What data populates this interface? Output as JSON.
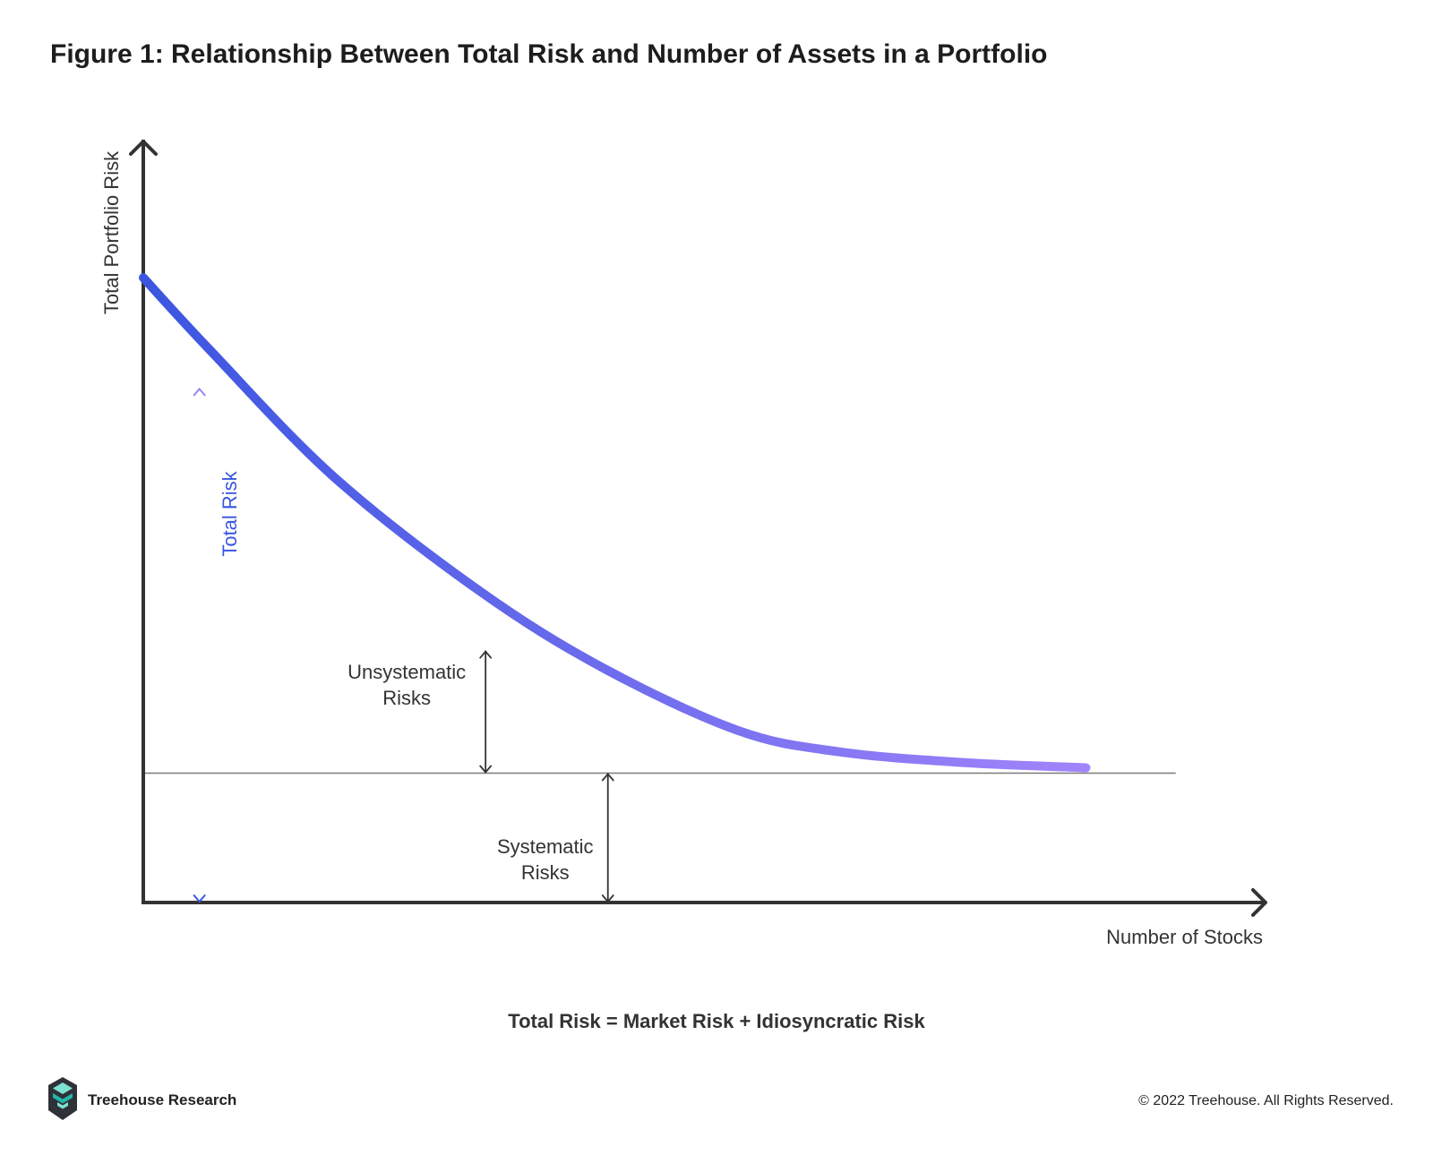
{
  "title": "Figure 1: Relationship Between Total Risk and Number of Assets in a Portfolio",
  "formula": "Total Risk = Market Risk + Idiosyncratic Risk",
  "brand": {
    "name": "Treehouse Research",
    "logo_colors": [
      "#2e3138",
      "#22b8a8",
      "#7fe0d4"
    ]
  },
  "copyright": "© 2022 Treehouse. All Rights Reserved.",
  "colors": {
    "axis": "#333333",
    "curve_start": "#3b55e0",
    "curve_end": "#a184fb",
    "total_risk_label": "#3b55e0",
    "total_risk_arrow_top": "#9b83f0",
    "total_risk_arrow_bottom": "#3b55e0",
    "baseline": "#7a7a7a",
    "annotation": "#333333"
  },
  "chart_data": {
    "type": "line",
    "xlabel": "Number of Stocks",
    "ylabel": "Total Portfolio Risk",
    "xlim": [
      0,
      100
    ],
    "ylim": [
      0,
      100
    ],
    "series": [
      {
        "x": [
          0,
          6,
          17,
          30,
          41,
          53,
          62,
          73,
          84
        ],
        "y": [
          82.1,
          72.5,
          55.9,
          40.9,
          30.8,
          22.6,
          19.8,
          18.4,
          17.7
        ]
      }
    ],
    "baseline": {
      "y": 17.0,
      "x_end": 92
    },
    "annotations": [
      {
        "label": "Total Risk",
        "x": 5,
        "y_from": 0,
        "y_to": 67.6,
        "rotated": true
      },
      {
        "label": "Unsystematic Risks",
        "lines": [
          "Unsystematic",
          "Risks"
        ],
        "x": 30.5,
        "y_from": 17.0,
        "y_to": 33.1
      },
      {
        "label": "Systematic Risks",
        "lines": [
          "Systematic",
          "Risks"
        ],
        "x": 41.4,
        "y_from": 0,
        "y_to": 17.0
      }
    ]
  }
}
